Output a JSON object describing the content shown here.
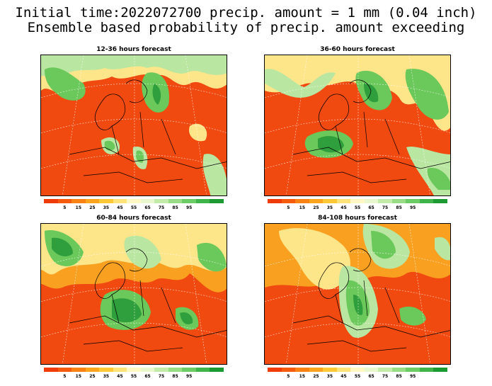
{
  "title_line1": "Initial time:2022072700 precip. amount = 1 mm (0.04 inch)",
  "title_line2": "Ensemble based probability of precip. amount exceeding",
  "panels": [
    {
      "title": "12-36 hours forecast"
    },
    {
      "title": "36-60 hours forecast"
    },
    {
      "title": "60-84 hours forecast"
    },
    {
      "title": "84-108 hours forecast"
    }
  ],
  "colorbar": {
    "colors": [
      "#f03c0a",
      "#f55a0f",
      "#f88214",
      "#fba51e",
      "#fbc836",
      "#fde37a",
      "#fff8c4",
      "#e9f7cf",
      "#c3ebaa",
      "#98dc85",
      "#6bcb64",
      "#3fb44a",
      "#1e9a34"
    ],
    "labels": [
      "5",
      "15",
      "25",
      "35",
      "45",
      "55",
      "65",
      "75",
      "85",
      "95"
    ]
  },
  "colors": {
    "low": "#f04a10",
    "mid_orange": "#f9a020",
    "yellow": "#fde58a",
    "pale": "#fff8d0",
    "light_green": "#b9e6a0",
    "green": "#6bc85a",
    "dark_green": "#2f9e3c"
  }
}
